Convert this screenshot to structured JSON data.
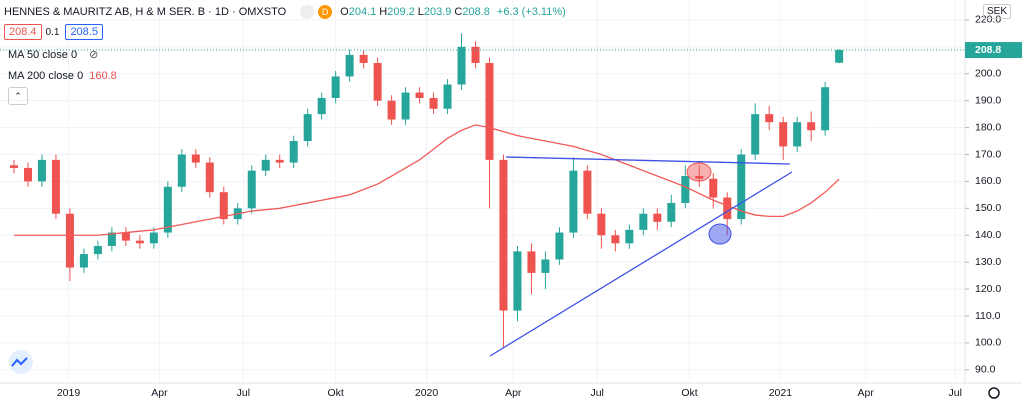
{
  "chart_data": {
    "type": "candlestick",
    "title": "HENNES & MAURITZ AB, H & M SER. B · 1D · OMXSTO",
    "badge": "D",
    "ohlc_labels": [
      "O",
      "H",
      "L",
      "C"
    ],
    "change": "+6.3 (+3.11%)",
    "sell": 208.4,
    "spread": 0.1,
    "buy": 208.5,
    "currency": "SEK",
    "hidden_series": "MA 50 close 0",
    "x": [
      0,
      1,
      2,
      3,
      4,
      5,
      6,
      7,
      8,
      9,
      10,
      11,
      12,
      13,
      14,
      15,
      16,
      17,
      18,
      19,
      20,
      21,
      22,
      23,
      24,
      25,
      26,
      27,
      28,
      29,
      30,
      31,
      32,
      33,
      34,
      35,
      36,
      37,
      38,
      39,
      40,
      41,
      42,
      43,
      44,
      45,
      46,
      47,
      48,
      49,
      50,
      51,
      52,
      53,
      54,
      55,
      56,
      57,
      58,
      59
    ],
    "open": [
      166,
      165,
      160,
      168,
      148,
      128,
      133,
      136,
      141,
      138,
      137,
      141,
      158,
      170,
      167,
      156,
      146,
      150,
      164,
      168,
      167,
      175,
      185,
      191,
      199,
      207,
      204,
      190,
      183,
      193,
      191,
      187,
      196,
      210,
      204,
      168,
      112,
      134,
      126,
      131,
      141,
      164,
      148,
      140,
      137,
      142,
      148,
      145,
      152,
      162,
      161,
      154,
      146,
      170,
      185,
      182,
      173,
      182,
      179,
      204.1
    ],
    "high": [
      168,
      167,
      170,
      170,
      150,
      135,
      138,
      143,
      143,
      140,
      143,
      160,
      172,
      172,
      169,
      158,
      152,
      166,
      170,
      170,
      177,
      187,
      193,
      201,
      209,
      209,
      206,
      192,
      195,
      195,
      193,
      198,
      215,
      212,
      206,
      170,
      136,
      137,
      134,
      143,
      169,
      166,
      150,
      142,
      144,
      150,
      150,
      155,
      166,
      166,
      163,
      156,
      172,
      189,
      188,
      184,
      184,
      186,
      197,
      209.2
    ],
    "low": [
      163,
      158,
      158,
      146,
      123,
      126,
      131,
      134,
      136,
      135,
      135,
      139,
      156,
      165,
      154,
      144,
      144,
      148,
      162,
      165,
      165,
      173,
      183,
      189,
      197,
      202,
      188,
      181,
      181,
      189,
      185,
      185,
      194,
      202,
      150,
      98,
      108,
      118,
      120,
      129,
      139,
      146,
      135,
      134,
      135,
      140,
      142,
      143,
      150,
      158,
      150,
      140,
      144,
      168,
      179,
      168,
      171,
      175,
      177,
      203.9
    ],
    "close": [
      165,
      160,
      168,
      148,
      128,
      133,
      136,
      141,
      138,
      137,
      141,
      158,
      170,
      167,
      156,
      146,
      150,
      164,
      168,
      167,
      175,
      185,
      191,
      199,
      207,
      204,
      190,
      183,
      193,
      191,
      187,
      196,
      210,
      204,
      168,
      112,
      134,
      126,
      131,
      141,
      164,
      148,
      140,
      137,
      142,
      148,
      145,
      152,
      162,
      161,
      154,
      146,
      170,
      185,
      182,
      173,
      182,
      179,
      195,
      208.8
    ],
    "up_color": "#26a69a",
    "down_color": "#ef5350",
    "series": [
      {
        "name": "MA 200 close 0",
        "color": "#f05a57",
        "values": [
          140,
          140,
          140,
          140,
          140,
          140,
          140,
          140.5,
          141,
          141.5,
          142,
          143,
          144,
          145,
          146,
          147,
          148,
          149,
          149.5,
          150,
          151,
          152,
          153,
          154,
          155,
          157,
          159,
          162,
          165,
          168,
          172,
          176,
          179,
          181,
          180,
          178.5,
          177,
          176,
          175,
          174,
          173,
          171.5,
          170,
          168,
          166,
          164,
          162,
          160,
          158,
          155.5,
          153,
          151,
          149,
          147.5,
          147,
          147,
          149,
          152,
          156,
          160.8
        ]
      }
    ],
    "xlim": [
      -1,
      68
    ],
    "xticks": [
      {
        "value": 3.9,
        "label": "2019"
      },
      {
        "value": 10.4,
        "label": "Apr"
      },
      {
        "value": 16.4,
        "label": "Jul"
      },
      {
        "value": 23.0,
        "label": "Okt"
      },
      {
        "value": 29.5,
        "label": "2020"
      },
      {
        "value": 35.7,
        "label": "Apr"
      },
      {
        "value": 41.7,
        "label": "Jul"
      },
      {
        "value": 48.3,
        "label": "Okt"
      },
      {
        "value": 54.8,
        "label": "2021"
      },
      {
        "value": 60.9,
        "label": "Apr"
      },
      {
        "value": 67.3,
        "label": "Jul"
      }
    ],
    "ylim": [
      85.1,
      227.4
    ],
    "yticks": [
      {
        "value": 90,
        "label": "90.0"
      },
      {
        "value": 100,
        "label": "100.0"
      },
      {
        "value": 110,
        "label": "110.0"
      },
      {
        "value": 120,
        "label": "120.0"
      },
      {
        "value": 130,
        "label": "130.0"
      },
      {
        "value": 140,
        "label": "140.0"
      },
      {
        "value": 150,
        "label": "150.0"
      },
      {
        "value": 160,
        "label": "160.0"
      },
      {
        "value": 170,
        "label": "170.0"
      },
      {
        "value": 180,
        "label": "180.0"
      },
      {
        "value": 190,
        "label": "190.0"
      },
      {
        "value": 200,
        "label": "200.0"
      },
      {
        "value": 210,
        "label": "210.0"
      },
      {
        "value": 220,
        "label": "220.0"
      }
    ]
  }
}
